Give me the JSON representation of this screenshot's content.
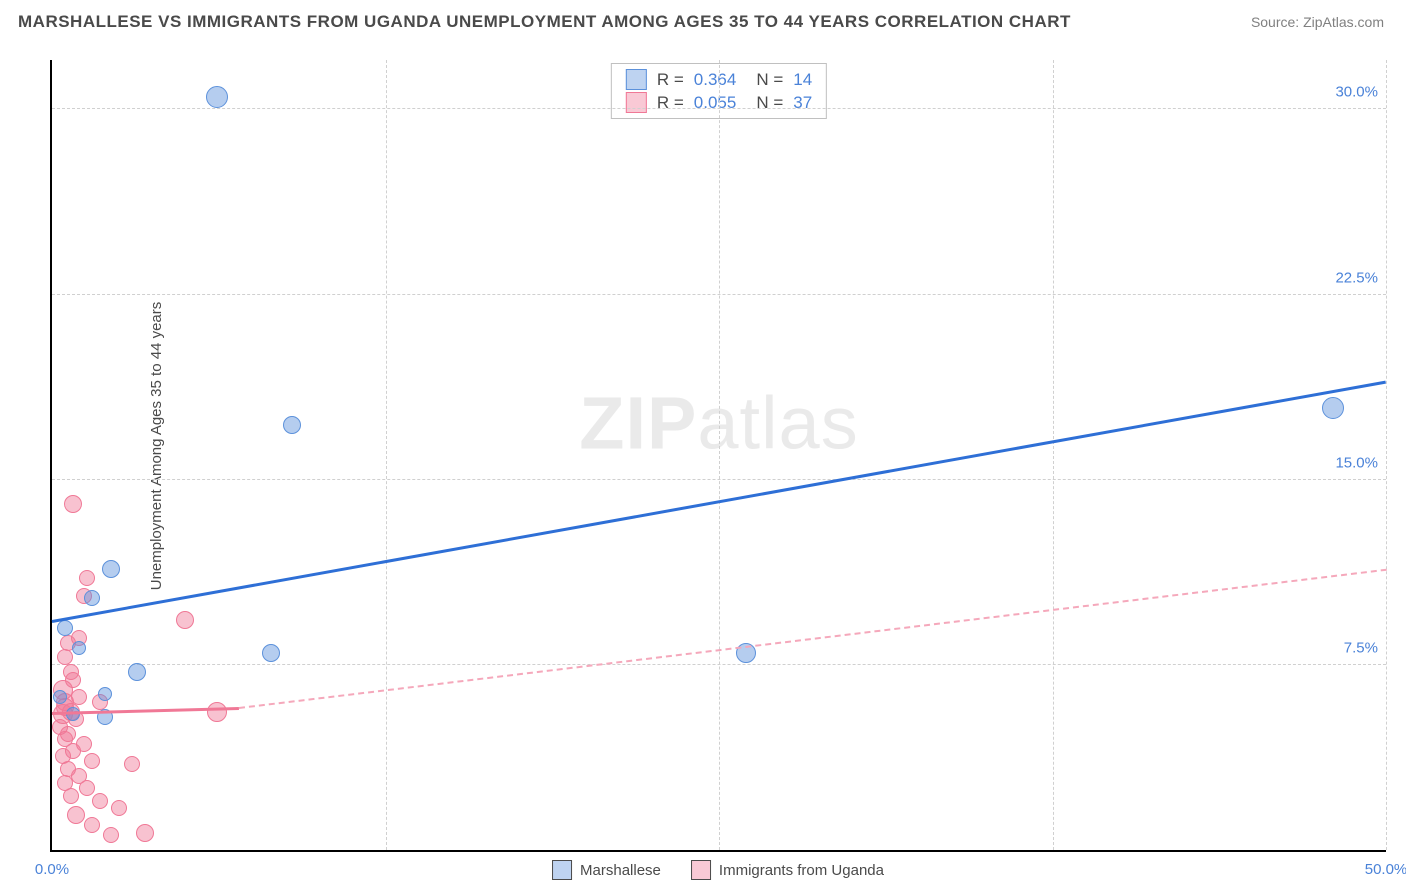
{
  "title": "MARSHALLESE VS IMMIGRANTS FROM UGANDA UNEMPLOYMENT AMONG AGES 35 TO 44 YEARS CORRELATION CHART",
  "source": "Source: ZipAtlas.com",
  "y_label": "Unemployment Among Ages 35 to 44 years",
  "watermark_a": "ZIP",
  "watermark_b": "atlas",
  "chart": {
    "type": "scatter",
    "xlim": [
      0,
      50
    ],
    "ylim": [
      0,
      32
    ],
    "x_ticks": [
      {
        "v": 0,
        "label": "0.0%",
        "cls": "x-tick-left"
      },
      {
        "v": 50,
        "label": "50.0%",
        "cls": "x-tick-right"
      }
    ],
    "y_ticks": [
      {
        "v": 7.5,
        "label": "7.5%"
      },
      {
        "v": 15,
        "label": "15.0%"
      },
      {
        "v": 22.5,
        "label": "22.5%"
      },
      {
        "v": 30,
        "label": "30.0%"
      }
    ],
    "h_grid": [
      7.5,
      15,
      22.5,
      30
    ],
    "v_grid": [
      12.5,
      25,
      37.5,
      50
    ],
    "background_color": "#ffffff",
    "grid_color": "#d0d0d0",
    "series": {
      "blue": {
        "label": "Marshallese",
        "color_fill": "rgba(92,145,219,0.45)",
        "color_stroke": "#5c91db",
        "marker_radius": 10,
        "R": "0.364",
        "N": "14",
        "trend": {
          "x1": 0,
          "y1": 9.3,
          "x2": 50,
          "y2": 19.0,
          "color": "#2e6fd6",
          "width": 3,
          "style": "solid"
        },
        "points": [
          {
            "x": 6.2,
            "y": 30.5,
            "r": 11
          },
          {
            "x": 9.0,
            "y": 17.2,
            "r": 9
          },
          {
            "x": 2.2,
            "y": 11.4,
            "r": 9
          },
          {
            "x": 0.5,
            "y": 9.0,
            "r": 8
          },
          {
            "x": 1.5,
            "y": 10.2,
            "r": 8
          },
          {
            "x": 3.2,
            "y": 7.2,
            "r": 9
          },
          {
            "x": 8.2,
            "y": 8.0,
            "r": 9
          },
          {
            "x": 26.0,
            "y": 8.0,
            "r": 10
          },
          {
            "x": 2.0,
            "y": 5.4,
            "r": 8
          },
          {
            "x": 0.8,
            "y": 5.5,
            "r": 7
          },
          {
            "x": 48.0,
            "y": 17.9,
            "r": 11
          },
          {
            "x": 2.0,
            "y": 6.3,
            "r": 7
          },
          {
            "x": 1.0,
            "y": 8.2,
            "r": 7
          },
          {
            "x": 0.3,
            "y": 6.2,
            "r": 7
          }
        ]
      },
      "pink": {
        "label": "Immigrants from Uganda",
        "color_fill": "rgba(240,120,150,0.45)",
        "color_stroke": "#f07896",
        "marker_radius": 9,
        "R": "0.055",
        "N": "37",
        "trend_solid": {
          "x1": 0,
          "y1": 5.6,
          "x2": 7,
          "y2": 5.8
        },
        "trend_dash": {
          "x1": 7,
          "y1": 5.8,
          "x2": 50,
          "y2": 11.4
        },
        "points": [
          {
            "x": 0.8,
            "y": 14.0,
            "r": 9
          },
          {
            "x": 1.3,
            "y": 11.0,
            "r": 8
          },
          {
            "x": 1.2,
            "y": 10.3,
            "r": 8
          },
          {
            "x": 5.0,
            "y": 9.3,
            "r": 9
          },
          {
            "x": 1.0,
            "y": 8.6,
            "r": 8
          },
          {
            "x": 0.6,
            "y": 8.4,
            "r": 8
          },
          {
            "x": 0.5,
            "y": 7.8,
            "r": 8
          },
          {
            "x": 0.7,
            "y": 7.2,
            "r": 8
          },
          {
            "x": 0.8,
            "y": 6.9,
            "r": 8
          },
          {
            "x": 0.4,
            "y": 6.5,
            "r": 10
          },
          {
            "x": 1.0,
            "y": 6.2,
            "r": 8
          },
          {
            "x": 1.8,
            "y": 6.0,
            "r": 8
          },
          {
            "x": 0.5,
            "y": 5.8,
            "r": 9
          },
          {
            "x": 0.4,
            "y": 5.5,
            "r": 10
          },
          {
            "x": 0.9,
            "y": 5.3,
            "r": 8
          },
          {
            "x": 6.2,
            "y": 5.6,
            "r": 10
          },
          {
            "x": 0.3,
            "y": 5.0,
            "r": 8
          },
          {
            "x": 0.6,
            "y": 4.7,
            "r": 8
          },
          {
            "x": 0.5,
            "y": 4.5,
            "r": 8
          },
          {
            "x": 1.2,
            "y": 4.3,
            "r": 8
          },
          {
            "x": 0.8,
            "y": 4.0,
            "r": 8
          },
          {
            "x": 0.4,
            "y": 3.8,
            "r": 8
          },
          {
            "x": 1.5,
            "y": 3.6,
            "r": 8
          },
          {
            "x": 3.0,
            "y": 3.5,
            "r": 8
          },
          {
            "x": 0.6,
            "y": 3.3,
            "r": 8
          },
          {
            "x": 1.0,
            "y": 3.0,
            "r": 8
          },
          {
            "x": 0.5,
            "y": 2.7,
            "r": 8
          },
          {
            "x": 1.3,
            "y": 2.5,
            "r": 8
          },
          {
            "x": 0.7,
            "y": 2.2,
            "r": 8
          },
          {
            "x": 1.8,
            "y": 2.0,
            "r": 8
          },
          {
            "x": 2.5,
            "y": 1.7,
            "r": 8
          },
          {
            "x": 0.9,
            "y": 1.4,
            "r": 9
          },
          {
            "x": 1.5,
            "y": 1.0,
            "r": 8
          },
          {
            "x": 3.5,
            "y": 0.7,
            "r": 9
          },
          {
            "x": 2.2,
            "y": 0.6,
            "r": 8
          },
          {
            "x": 0.5,
            "y": 6.0,
            "r": 9
          },
          {
            "x": 0.7,
            "y": 5.6,
            "r": 9
          }
        ]
      }
    }
  },
  "r_box": {
    "rows": [
      {
        "swatch": "blue",
        "R_label": "R =",
        "R": "0.364",
        "N_label": "N =",
        "N": "14"
      },
      {
        "swatch": "pink",
        "R_label": "R =",
        "R": "0.055",
        "N_label": "N =",
        "N": "37"
      }
    ]
  }
}
